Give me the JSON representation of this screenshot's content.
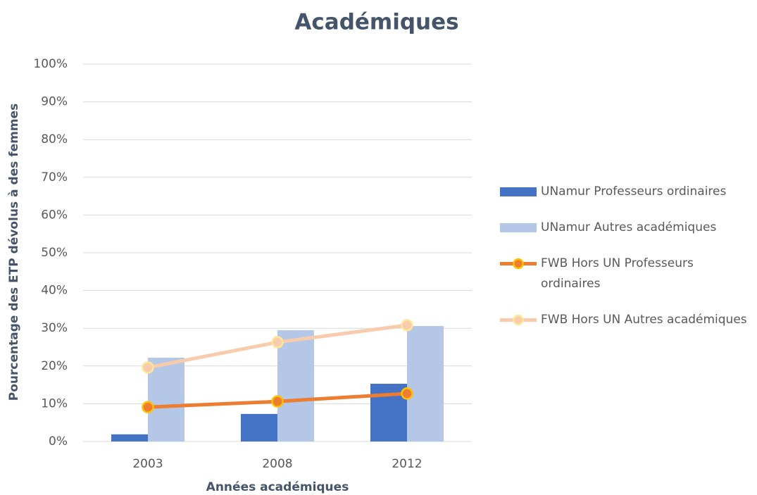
{
  "chart_data": {
    "type": "bar",
    "title": "Académiques",
    "x_label": "Années académiques",
    "y_label": "Pourcentage des ETP dévolus à des femmes",
    "categories": [
      "2003",
      "2008",
      "2012"
    ],
    "series": [
      {
        "name": "UNamur Professeurs ordinaires",
        "type": "bar",
        "color": "#4472c4",
        "values": [
          1.9,
          7.3,
          15.3
        ]
      },
      {
        "name": "UNamur Autres académiques",
        "type": "bar",
        "color": "#b4c7e7",
        "values": [
          22.2,
          29.5,
          30.6
        ]
      },
      {
        "name": "FWB Hors UN Professeurs ordinaires",
        "type": "line",
        "color": "#ed7d31",
        "marker_color": "#ffc000",
        "values": [
          9.1,
          10.6,
          12.7
        ]
      },
      {
        "name": "FWB Hors UN Autres académiques",
        "type": "line",
        "color": "#f8cbad",
        "marker_color": "#ffe699",
        "values": [
          19.6,
          26.3,
          30.8
        ]
      }
    ],
    "ylim": [
      0,
      100
    ],
    "yticks": [
      {
        "value": 0,
        "label": "0%"
      },
      {
        "value": 10,
        "label": "10%"
      },
      {
        "value": 20,
        "label": "20%"
      },
      {
        "value": 30,
        "label": "30%"
      },
      {
        "value": 40,
        "label": "40%"
      },
      {
        "value": 50,
        "label": "50%"
      },
      {
        "value": 60,
        "label": "60%"
      },
      {
        "value": 70,
        "label": "70%"
      },
      {
        "value": 80,
        "label": "80%"
      },
      {
        "value": 90,
        "label": "90%"
      },
      {
        "value": 100,
        "label": "100%"
      }
    ],
    "grid": true,
    "legend": "right"
  }
}
